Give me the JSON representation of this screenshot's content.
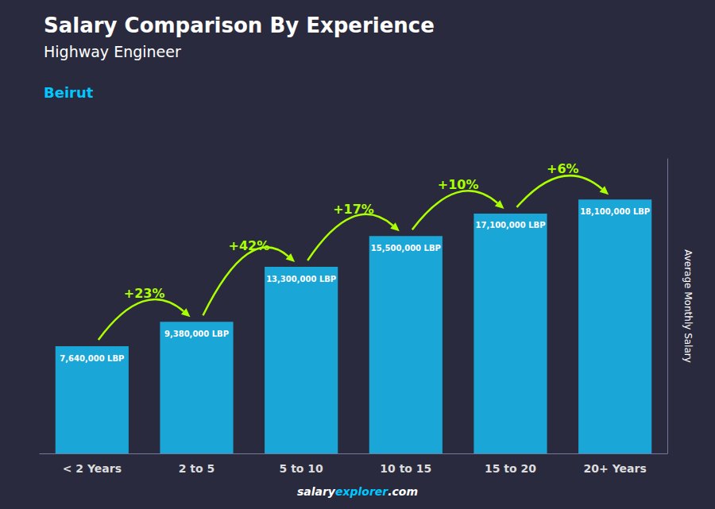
{
  "chart_data": {
    "type": "bar",
    "title": "Salary Comparison By Experience",
    "subtitle": "Highway Engineer",
    "annotations": [
      {
        "text": "Beirut",
        "color": "#00c8ff"
      }
    ],
    "footer": [
      {
        "text": "salary",
        "color": "#ffffff"
      },
      {
        "text": "explorer",
        "color": "#00c8ff"
      },
      {
        "text": ".com",
        "color": "#ffffff"
      }
    ],
    "ylabel": "Average Monthly Salary",
    "categories": [
      "< 2 Years",
      "2 to 5",
      "5 to 10",
      "10 to 15",
      "15 to 20",
      "20+ Years"
    ],
    "values": [
      7640000,
      9380000,
      13300000,
      15500000,
      17100000,
      18100000
    ],
    "value_labels": [
      "7,640,000 LBP",
      "9,380,000 LBP",
      "13,300,000 LBP",
      "15,500,000 LBP",
      "17,100,000 LBP",
      "18,100,000 LBP"
    ],
    "change_labels": [
      "+23%",
      "+42%",
      "+17%",
      "+10%",
      "+6%"
    ],
    "change_color": "#aaff00",
    "color": "#1aa6d6",
    "ylim": [
      0,
      21000000
    ],
    "yticks": [],
    "tick_labels": "x",
    "grid": false,
    "data_labels": true
  }
}
